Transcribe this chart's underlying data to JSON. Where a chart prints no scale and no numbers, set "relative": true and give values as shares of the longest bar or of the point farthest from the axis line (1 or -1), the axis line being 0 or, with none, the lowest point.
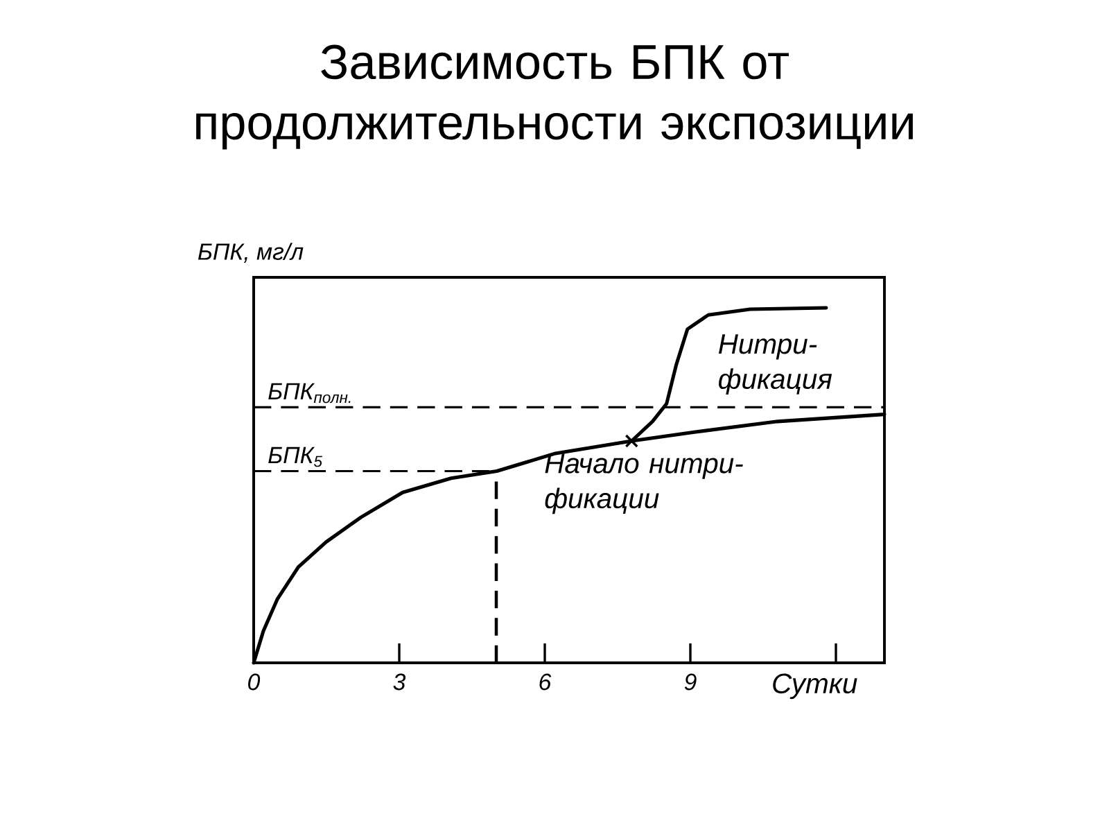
{
  "chart_data": {
    "type": "line",
    "title": "Зависимость БПК от продолжительности экспозиции",
    "xlabel": "Сутки",
    "ylabel": "БПК, мг/л",
    "relative": true,
    "tick_labels": "x",
    "xlim": [
      0,
      13
    ],
    "xticks": [
      0,
      3,
      6,
      9,
      {
        "value": 12,
        "label": null
      }
    ],
    "marker": "none",
    "series": [
      {
        "color": "#000000",
        "x": [
          0,
          0.2,
          0.49,
          0.92,
          1.49,
          2.21,
          3.07,
          4.07,
          5.01,
          6.22,
          7.79,
          9.08,
          10.8,
          13.0
        ],
        "values": [
          0,
          0.09,
          0.18,
          0.27,
          0.34,
          0.41,
          0.48,
          0.52,
          0.54,
          0.59,
          0.625,
          0.65,
          0.68,
          0.7
        ]
      },
      {
        "color": "#000000",
        "x": [
          7.79,
          8.22,
          8.51,
          8.71,
          8.94,
          9.37,
          10.23,
          11.8
        ],
        "values": [
          0.625,
          0.68,
          0.73,
          0.84,
          0.94,
          0.98,
          0.996,
          1
        ]
      },
      {
        "type": "scatter",
        "marker": "cross",
        "color": "#000000",
        "x": [
          7.79
        ],
        "values": [
          0.625
        ]
      }
    ],
    "ref_lines": [
      {
        "axis": "y",
        "value": 0.72,
        "label": "БПК$_{полн.}$",
        "line_style": "dashed"
      },
      {
        "axis": "y",
        "value": 0.54,
        "label": "БПК$_{5}$",
        "line_style": "dashed"
      },
      {
        "axis": "x",
        "value": 5,
        "line_style": "dashed"
      }
    ],
    "annotations": [
      "Нитри-фикация",
      {
        "text": "Начало нитри-фикации",
        "x": 7.79,
        "y": 0.625
      }
    ]
  }
}
